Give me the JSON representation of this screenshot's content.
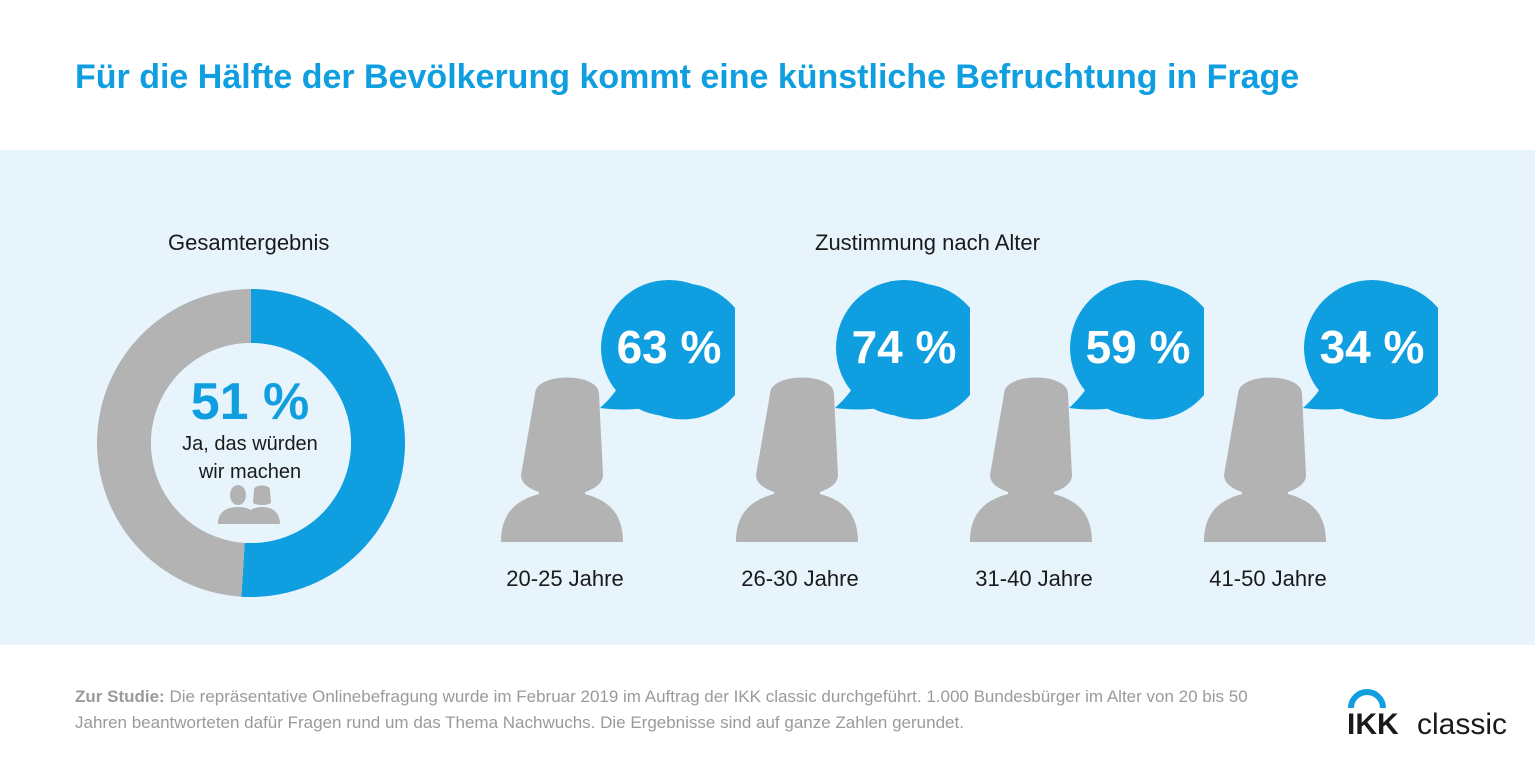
{
  "title": "Für die Hälfte der Bevölkerung kommt eine künstliche Befruchtung in Frage",
  "colors": {
    "accent": "#0f9fe0",
    "gray": "#b3b3b3",
    "panel": "#e8f4fc"
  },
  "overall": {
    "label": "Gesamtergebnis",
    "value_label": "51 %",
    "caption_line1": "Ja, das würden",
    "caption_line2": "wir machen",
    "icon": "two-people-icon"
  },
  "by_age": {
    "label": "Zustimmung nach Alter"
  },
  "chart_data": [
    {
      "type": "pie",
      "title": "Gesamtergebnis",
      "values": [
        51,
        49
      ],
      "categories": [
        "Ja, das würden wir machen",
        ""
      ],
      "colors": [
        "#0f9fe0",
        "#b3b3b3"
      ]
    },
    {
      "type": "bar",
      "title": "Zustimmung nach Alter",
      "categories": [
        "20-25 Jahre",
        "26-30 Jahre",
        "31-40 Jahre",
        "41-50 Jahre"
      ],
      "values": [
        63,
        74,
        59,
        34
      ],
      "value_labels": [
        "63 %",
        "74 %",
        "59 %",
        "34 %"
      ]
    }
  ],
  "footer": {
    "label": "Zur Studie:",
    "text": " Die repräsentative Onlinebefragung wurde im Februar 2019 im Auftrag der IKK classic durchgeführt. 1.000 Bundesbürger im Alter von 20 bis 50 Jahren beantworteten dafür Fragen rund um das Thema Nachwuchs. Die Ergebnisse sind auf ganze Zahlen gerundet."
  },
  "logo": {
    "text_bold": "IKK",
    "text_light": "classic"
  }
}
